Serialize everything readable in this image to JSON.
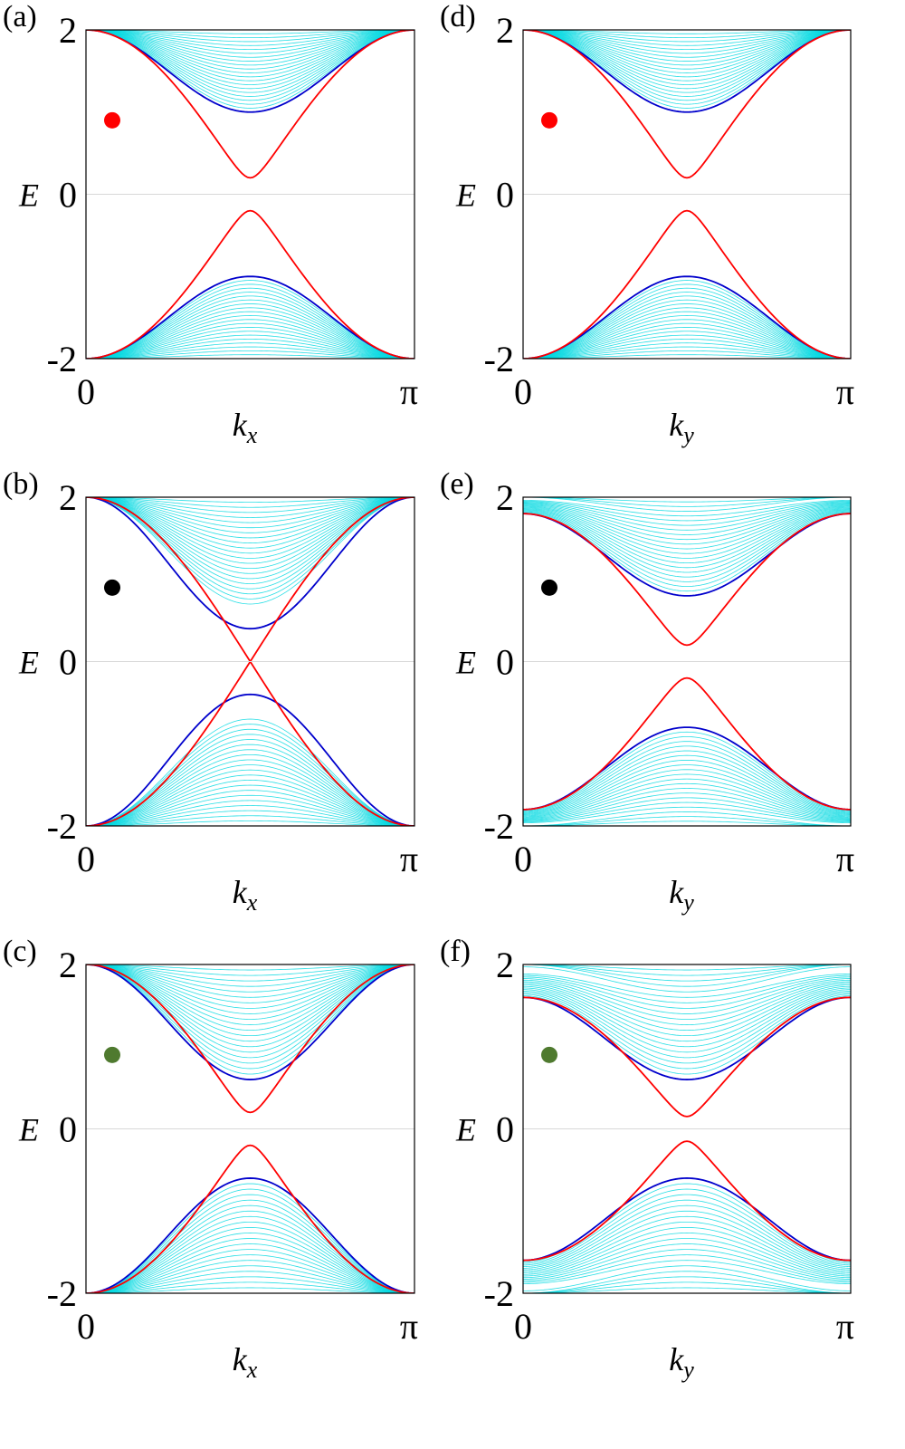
{
  "chart_data": [
    {
      "type": "line",
      "panel_label": "(a)",
      "xlabel": "k",
      "xlabel_sub": "x",
      "ylabel": "E",
      "xlim": [
        0,
        3.14159
      ],
      "ylim": [
        -2,
        2
      ],
      "x_ticks": [
        "0",
        "π"
      ],
      "y_ticks": [
        "-2",
        "0",
        "2"
      ],
      "marker_color": "#ff0000",
      "zero_gridline": true,
      "series": [
        {
          "color": "#ff0000",
          "values_at_0": 2.0,
          "gap_value_at_half_pi": 0.2
        },
        {
          "color": "#0000cc",
          "values_at_0": 2.0,
          "gap_value_at_half_pi": 1.0
        },
        {
          "color": "#00d8e0",
          "band_range": [
            1.0,
            2.0
          ]
        }
      ]
    },
    {
      "type": "line",
      "panel_label": "(b)",
      "xlabel": "k",
      "xlabel_sub": "x",
      "ylabel": "E",
      "xlim": [
        0,
        3.14159
      ],
      "ylim": [
        -2,
        2
      ],
      "x_ticks": [
        "0",
        "π"
      ],
      "y_ticks": [
        "-2",
        "0",
        "2"
      ],
      "marker_color": "#000000",
      "zero_gridline": true,
      "series": [
        {
          "color": "#ff0000",
          "values_at_0": 2.0,
          "gap_value_at_half_pi": 0.0,
          "crossing": true
        },
        {
          "color": "#0000cc",
          "values_at_0": 2.0,
          "gap_value_at_half_pi": 0.4
        },
        {
          "color": "#00d8e0",
          "band_range": [
            0.7,
            2.0
          ]
        }
      ]
    },
    {
      "type": "line",
      "panel_label": "(c)",
      "xlabel": "k",
      "xlabel_sub": "x",
      "ylabel": "E",
      "xlim": [
        0,
        3.14159
      ],
      "ylim": [
        -2,
        2
      ],
      "x_ticks": [
        "0",
        "π"
      ],
      "y_ticks": [
        "-2",
        "0",
        "2"
      ],
      "marker_color": "#4f7a2f",
      "zero_gridline": true,
      "series": [
        {
          "color": "#ff0000",
          "values_at_0": 2.0,
          "gap_value_at_half_pi": 0.2
        },
        {
          "color": "#0000cc",
          "values_at_0": 2.0,
          "gap_value_at_half_pi": 0.6
        },
        {
          "color": "#00d8e0",
          "band_range": [
            0.6,
            2.0
          ]
        }
      ]
    },
    {
      "type": "line",
      "panel_label": "(d)",
      "xlabel": "k",
      "xlabel_sub": "y",
      "ylabel": "E",
      "xlim": [
        0,
        3.14159
      ],
      "ylim": [
        -2,
        2
      ],
      "x_ticks": [
        "0",
        "π"
      ],
      "y_ticks": [
        "-2",
        "0",
        "2"
      ],
      "marker_color": "#ff0000",
      "zero_gridline": true,
      "series": [
        {
          "color": "#ff0000",
          "values_at_0": 2.0,
          "gap_value_at_half_pi": 0.2
        },
        {
          "color": "#0000cc",
          "values_at_0": 2.0,
          "gap_value_at_half_pi": 1.0
        },
        {
          "color": "#00d8e0",
          "band_range": [
            1.0,
            2.0
          ]
        }
      ]
    },
    {
      "type": "line",
      "panel_label": "(e)",
      "xlabel": "k",
      "xlabel_sub": "y",
      "ylabel": "E",
      "xlim": [
        0,
        3.14159
      ],
      "ylim": [
        -2,
        2
      ],
      "x_ticks": [
        "0",
        "π"
      ],
      "y_ticks": [
        "-2",
        "0",
        "2"
      ],
      "marker_color": "#000000",
      "zero_gridline": true,
      "series": [
        {
          "color": "#ff0000",
          "values_at_0": 1.8,
          "gap_value_at_half_pi": 0.2
        },
        {
          "color": "#0000cc",
          "values_at_0": 1.8,
          "gap_value_at_half_pi": 0.8
        },
        {
          "color": "#00d8e0",
          "band_range": [
            0.8,
            2.0
          ]
        }
      ]
    },
    {
      "type": "line",
      "panel_label": "(f)",
      "xlabel": "k",
      "xlabel_sub": "y",
      "ylabel": "E",
      "xlim": [
        0,
        3.14159
      ],
      "ylim": [
        -2,
        2
      ],
      "x_ticks": [
        "0",
        "π"
      ],
      "y_ticks": [
        "-2",
        "0",
        "2"
      ],
      "marker_color": "#4f7a2f",
      "zero_gridline": true,
      "series": [
        {
          "color": "#ff0000",
          "values_at_0": 1.6,
          "gap_value_at_half_pi": 0.15
        },
        {
          "color": "#0000cc",
          "values_at_0": 1.6,
          "gap_value_at_half_pi": 0.6
        },
        {
          "color": "#00d8e0",
          "band_range": [
            0.6,
            2.0
          ]
        }
      ]
    }
  ]
}
